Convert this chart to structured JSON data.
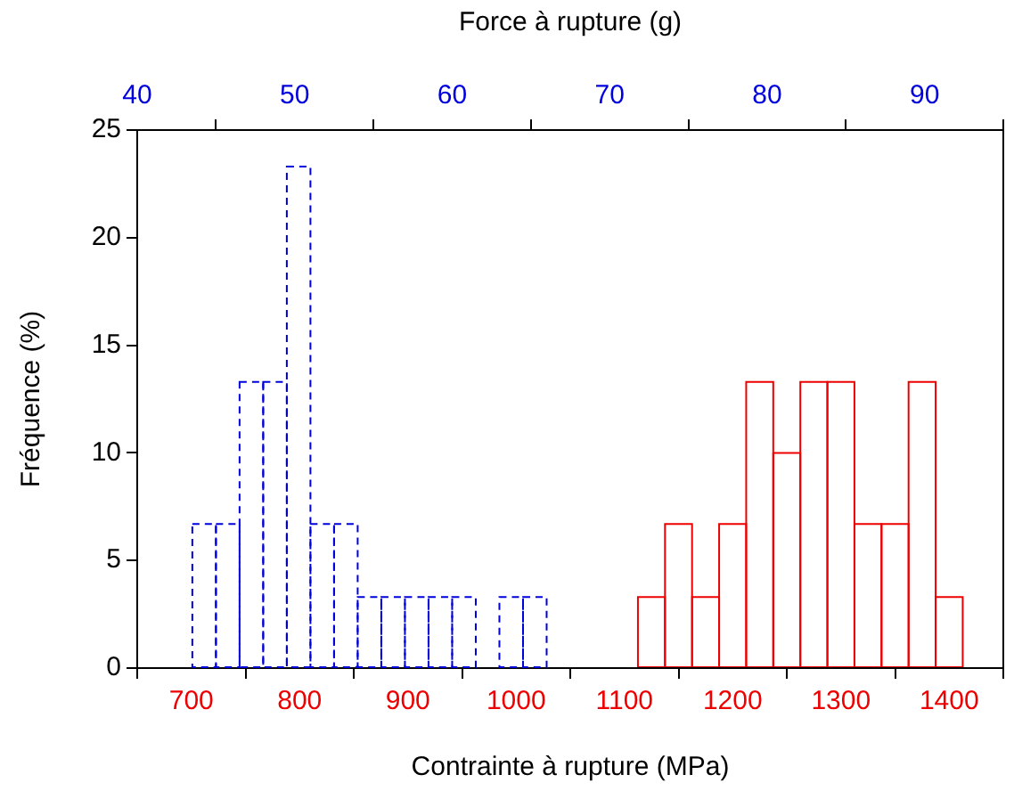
{
  "chart_data": [
    {
      "type": "histogram",
      "xlabel": "Contrainte à rupture (MPa)",
      "ylabel": "Fréquence (%)",
      "xlim": [
        650,
        1450
      ],
      "xticks": [
        700,
        800,
        900,
        1000,
        1100,
        1200,
        1300,
        1400
      ],
      "ylim": [
        0,
        25
      ],
      "yticks": [
        0,
        5,
        10,
        15,
        20,
        25
      ],
      "color": "#ee0000",
      "line_style": "solid",
      "grid": false,
      "legend": false,
      "bins": [
        1112.5,
        1137.5,
        1162.5,
        1187.5,
        1212.5,
        1237.5,
        1262.5,
        1287.5,
        1312.5,
        1337.5,
        1362.5,
        1387.5,
        1412.5
      ],
      "values": [
        3.3,
        6.7,
        3.3,
        6.7,
        13.3,
        10,
        13.3,
        13.3,
        6.7,
        6.7,
        13.3,
        3.3
      ]
    },
    {
      "type": "histogram",
      "xlabel": "Force à rupture (g)",
      "xlim": [
        40,
        95
      ],
      "xticks": [
        40,
        50,
        60,
        70,
        80,
        90
      ],
      "ylim": [
        0,
        25
      ],
      "yticks": [
        0,
        5,
        10,
        15,
        20,
        25
      ],
      "tick_labels": "x",
      "grid": false,
      "legend": false,
      "color": "#0000dd",
      "line_style": "dashed",
      "bins": [
        43.5,
        45,
        46.5,
        48,
        49.5,
        51,
        52.5,
        54,
        55.5,
        57,
        58.5,
        60,
        61.5,
        63,
        64.5,
        66
      ],
      "values": [
        6.7,
        6.7,
        13.3,
        13.3,
        23.3,
        6.7,
        6.7,
        3.3,
        3.3,
        3.3,
        3.3,
        3.3,
        0,
        3.3,
        3.3
      ]
    }
  ]
}
